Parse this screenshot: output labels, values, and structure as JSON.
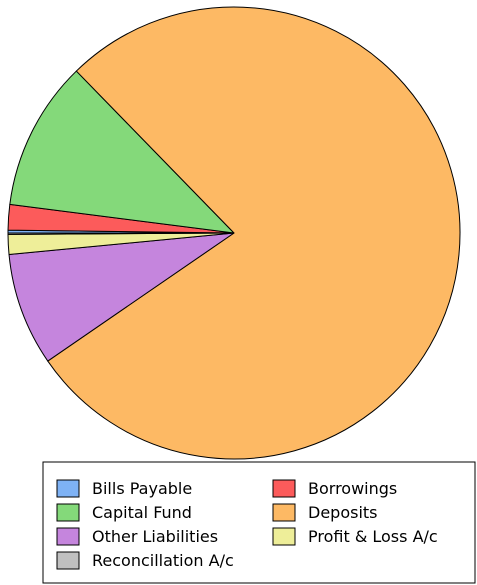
{
  "chart_data": {
    "type": "pie",
    "legend_placement": "bottom",
    "slices": [
      {
        "name": "Bills Payable",
        "value": 0.2,
        "color": "#7eb2f5"
      },
      {
        "name": "Borrowings",
        "value": 1.8,
        "color": "#fc5b5b"
      },
      {
        "name": "Capital Fund",
        "value": 10.6,
        "color": "#84d97a"
      },
      {
        "name": "Deposits",
        "value": 77.0,
        "color": "#fdb964"
      },
      {
        "name": "Other Liabilities",
        "value": 8.0,
        "color": "#c585dd"
      },
      {
        "name": "Profit & Loss A/c",
        "value": 1.4,
        "color": "#eeee99"
      },
      {
        "name": "Reconcillation A/c",
        "value": 0.1,
        "color": "#c0c0c0"
      }
    ]
  }
}
